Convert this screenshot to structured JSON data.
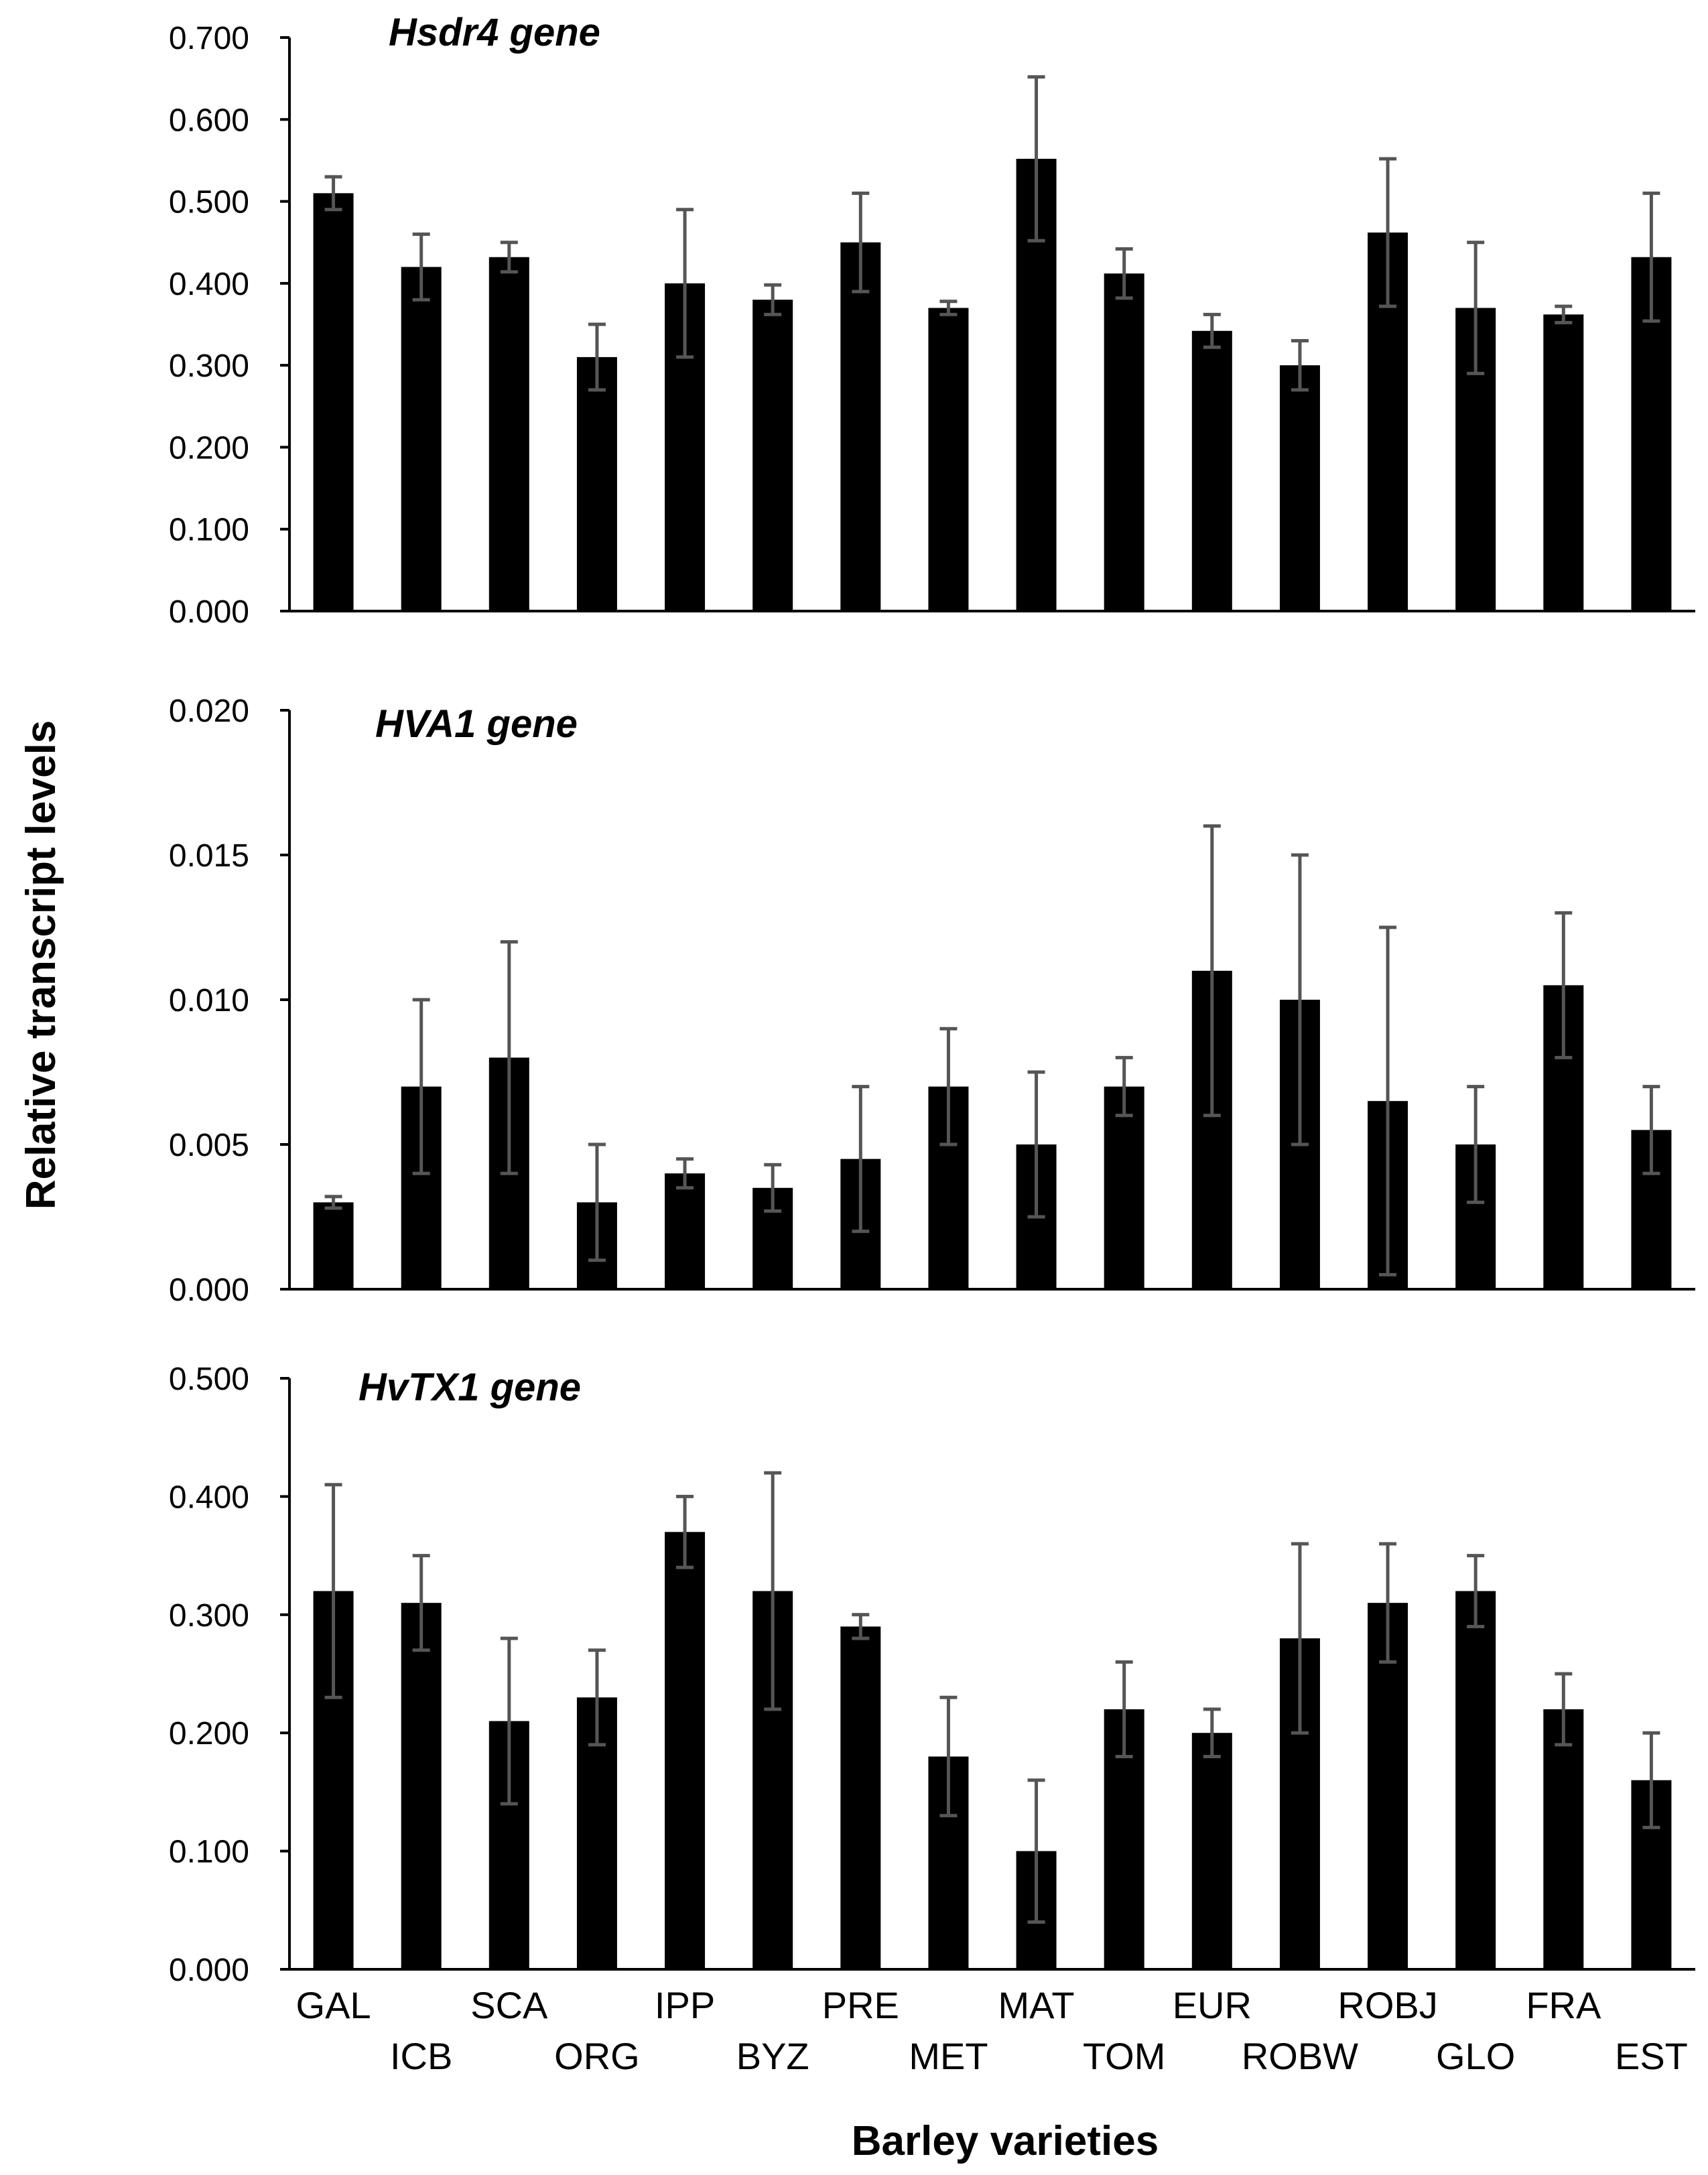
{
  "chart_data": [
    {
      "type": "bar",
      "title": "Hsdr4 gene",
      "categories": [
        "GAL",
        "ICB",
        "SCA",
        "ORG",
        "IPP",
        "BYZ",
        "PRE",
        "MET",
        "MAT",
        "TOM",
        "EUR",
        "ROBW",
        "ROBJ",
        "GLO",
        "FRA",
        "EST"
      ],
      "values": [
        0.51,
        0.42,
        0.432,
        0.31,
        0.4,
        0.38,
        0.45,
        0.37,
        0.552,
        0.412,
        0.342,
        0.3,
        0.462,
        0.37,
        0.362,
        0.432
      ],
      "errors": [
        0.02,
        0.04,
        0.018,
        0.04,
        0.09,
        0.018,
        0.06,
        0.008,
        0.1,
        0.03,
        0.02,
        0.03,
        0.09,
        0.08,
        0.01,
        0.078
      ],
      "ylim": [
        0,
        0.7
      ],
      "yticks": [
        "0.000",
        "0.100",
        "0.200",
        "0.300",
        "0.400",
        "0.500",
        "0.600",
        "0.700"
      ]
    },
    {
      "type": "bar",
      "title": "HVA1 gene",
      "categories": [
        "GAL",
        "ICB",
        "SCA",
        "ORG",
        "IPP",
        "BYZ",
        "PRE",
        "MET",
        "MAT",
        "TOM",
        "EUR",
        "ROBW",
        "ROBJ",
        "GLO",
        "FRA",
        "EST"
      ],
      "values": [
        0.003,
        0.007,
        0.008,
        0.003,
        0.004,
        0.0035,
        0.0045,
        0.007,
        0.005,
        0.007,
        0.011,
        0.01,
        0.0065,
        0.005,
        0.0105,
        0.0055
      ],
      "errors": [
        0.0002,
        0.003,
        0.004,
        0.002,
        0.0005,
        0.0008,
        0.0025,
        0.002,
        0.0025,
        0.001,
        0.005,
        0.005,
        0.006,
        0.002,
        0.0025,
        0.0015
      ],
      "ylim": [
        0,
        0.02
      ],
      "yticks": [
        "0.000",
        "0.005",
        "0.010",
        "0.015",
        "0.020"
      ]
    },
    {
      "type": "bar",
      "title": "HvTX1 gene",
      "categories": [
        "GAL",
        "ICB",
        "SCA",
        "ORG",
        "IPP",
        "BYZ",
        "PRE",
        "MET",
        "MAT",
        "TOM",
        "EUR",
        "ROBW",
        "ROBJ",
        "GLO",
        "FRA",
        "EST"
      ],
      "values": [
        0.32,
        0.31,
        0.21,
        0.23,
        0.37,
        0.32,
        0.29,
        0.18,
        0.1,
        0.22,
        0.2,
        0.28,
        0.31,
        0.32,
        0.22,
        0.16
      ],
      "errors": [
        0.09,
        0.04,
        0.07,
        0.04,
        0.03,
        0.1,
        0.01,
        0.05,
        0.06,
        0.04,
        0.02,
        0.08,
        0.05,
        0.03,
        0.03,
        0.04
      ],
      "ylim": [
        0,
        0.5
      ],
      "yticks": [
        "0.000",
        "0.100",
        "0.200",
        "0.300",
        "0.400",
        "0.500"
      ]
    }
  ],
  "axes": {
    "ylabel": "Relative transcript levels",
    "xlabel": "Barley varieties"
  }
}
